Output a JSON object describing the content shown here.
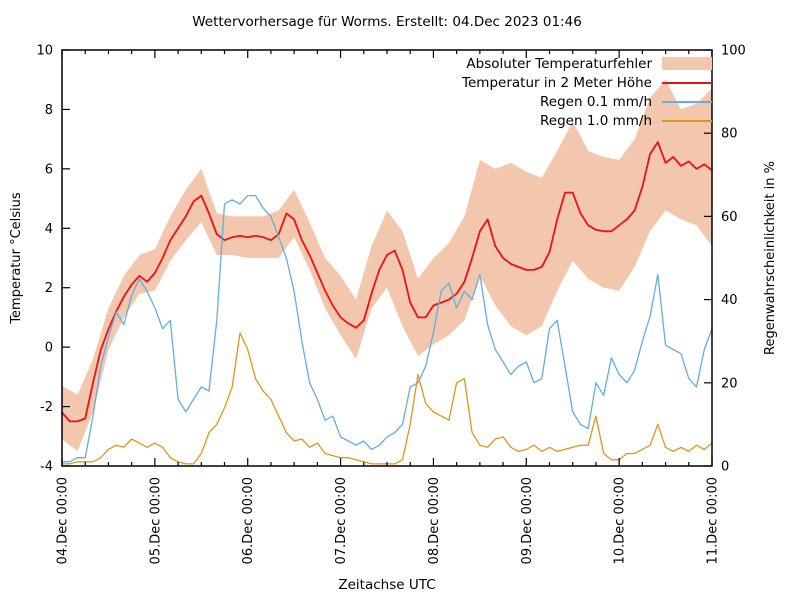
{
  "title": "Wettervorhersage für Worms. Erstellt: 04.Dec 2023 01:46",
  "chart_data": {
    "type": "line",
    "title": "Wettervorhersage für Worms. Erstellt: 04.Dec 2023 01:46",
    "xlabel": "Zeitachse UTC",
    "ylabel_left": "Temperatur °Celsius",
    "ylabel_right": "Regenwahrscheinlichkeit in %",
    "ylim_left": [
      -4,
      10
    ],
    "yticks_left": [
      -4,
      -2,
      0,
      2,
      4,
      6,
      8,
      10
    ],
    "ylim_right": [
      0,
      100
    ],
    "yticks_right": [
      0,
      20,
      40,
      60,
      80,
      100
    ],
    "x_range_hours": [
      0,
      168
    ],
    "x_tick_hours": [
      0,
      24,
      48,
      72,
      96,
      120,
      144,
      168
    ],
    "x_tick_labels": [
      "04.Dec 00:00",
      "05.Dec 00:00",
      "06.Dec 00:00",
      "07.Dec 00:00",
      "08.Dec 00:00",
      "09.Dec 00:00",
      "10.Dec 00:00",
      "11.Dec 00:00"
    ],
    "x_minor_step_hours": 6,
    "grid": false,
    "legend_position": "top-right-inside",
    "series": [
      {
        "name": "Absoluter Temperaturfehler",
        "type": "band",
        "axis": "left",
        "color": "#f2c7ae",
        "step_hours": 4,
        "upper": [
          -1.3,
          -1.6,
          -0.4,
          1.3,
          2.4,
          3.1,
          3.3,
          4.4,
          5.3,
          6.0,
          4.5,
          4.4,
          4.4,
          4.4,
          4.6,
          5.3,
          4.2,
          3.0,
          2.4,
          1.6,
          3.4,
          4.6,
          3.9,
          2.3,
          3.0,
          3.5,
          4.4,
          6.3,
          6.0,
          6.2,
          5.9,
          5.7,
          6.6,
          7.6,
          6.6,
          6.4,
          6.3,
          7.0,
          8.4,
          9.0,
          8.0,
          8.2,
          8.7
        ],
        "lower": [
          -3.1,
          -3.5,
          -2.2,
          -0.1,
          1.0,
          1.8,
          1.9,
          2.9,
          3.6,
          4.2,
          3.1,
          3.1,
          3.0,
          3.0,
          3.0,
          3.7,
          2.6,
          1.3,
          0.4,
          -0.4,
          1.3,
          2.0,
          0.7,
          -0.3,
          0.1,
          0.4,
          0.9,
          2.4,
          1.4,
          0.7,
          0.4,
          0.7,
          1.9,
          2.9,
          2.3,
          2.0,
          1.9,
          2.7,
          3.9,
          4.6,
          4.3,
          4.1,
          3.4
        ]
      },
      {
        "name": "Temperatur in 2 Meter Höhe",
        "type": "line",
        "axis": "left",
        "color": "#ee1111",
        "step_hours": 2,
        "values": [
          -2.2,
          -2.5,
          -2.5,
          -2.4,
          -1.2,
          -0.1,
          0.6,
          1.2,
          1.7,
          2.1,
          2.4,
          2.2,
          2.5,
          3.0,
          3.6,
          4.0,
          4.4,
          4.9,
          5.1,
          4.5,
          3.8,
          3.6,
          3.7,
          3.75,
          3.7,
          3.75,
          3.7,
          3.6,
          3.8,
          4.5,
          4.3,
          3.6,
          3.1,
          2.5,
          1.9,
          1.4,
          1.0,
          0.8,
          0.65,
          0.9,
          1.8,
          2.6,
          3.1,
          3.25,
          2.6,
          1.5,
          1.0,
          1.0,
          1.4,
          1.5,
          1.6,
          1.8,
          2.2,
          3.0,
          3.9,
          4.3,
          3.4,
          3.0,
          2.8,
          2.7,
          2.6,
          2.6,
          2.7,
          3.2,
          4.3,
          5.2,
          5.2,
          4.5,
          4.1,
          3.95,
          3.9,
          3.9,
          4.1,
          4.3,
          4.6,
          5.4,
          6.5,
          6.9,
          6.2,
          6.4,
          6.1,
          6.25,
          6.0,
          6.15,
          5.95
        ]
      },
      {
        "name": "Regen 0.1 mm/h",
        "type": "line",
        "axis": "right",
        "color": "#63ade0",
        "step_hours": 2,
        "values": [
          1,
          1,
          2,
          2,
          12,
          24,
          31,
          37,
          34,
          41,
          45,
          42,
          38,
          33,
          35,
          16,
          13,
          16,
          19,
          18,
          35,
          63,
          64,
          63,
          65,
          65,
          62,
          60,
          55,
          50,
          42,
          30,
          20,
          16,
          11,
          12,
          7,
          6,
          5,
          6,
          4,
          5,
          7,
          8,
          10,
          19,
          20,
          24,
          32,
          42,
          44,
          38,
          42,
          40,
          46,
          34,
          28,
          25,
          22,
          24,
          25,
          20,
          21,
          33,
          35,
          24,
          13,
          10,
          9,
          20,
          17,
          26,
          22,
          20,
          23,
          30,
          36,
          46,
          29,
          28,
          27,
          21,
          19,
          28,
          33
        ]
      },
      {
        "name": "Regen 1.0 mm/h",
        "type": "line",
        "axis": "right",
        "color": "#e0941c",
        "step_hours": 2,
        "values": [
          0.5,
          0.5,
          1,
          1,
          1,
          2,
          4,
          5,
          4.5,
          6.5,
          5.5,
          4.5,
          5.5,
          4.5,
          2,
          1,
          0.5,
          0.5,
          3,
          8,
          10,
          14,
          19,
          32,
          28,
          21,
          18,
          16,
          12,
          8,
          6,
          6.5,
          4.5,
          5.5,
          3,
          2.5,
          2,
          2,
          1.5,
          1,
          0.5,
          0.5,
          0.5,
          0.5,
          1.5,
          10,
          22,
          15,
          13,
          12,
          11,
          20,
          21,
          8,
          5,
          4.5,
          6.5,
          7,
          4.5,
          3.5,
          4,
          5,
          3.5,
          4.5,
          3.5,
          4,
          4.5,
          5,
          5,
          12,
          3,
          1.5,
          1.5,
          3,
          3,
          4,
          5,
          10,
          4.5,
          3.5,
          4.5,
          3.5,
          5,
          4,
          5.5
        ]
      }
    ]
  }
}
